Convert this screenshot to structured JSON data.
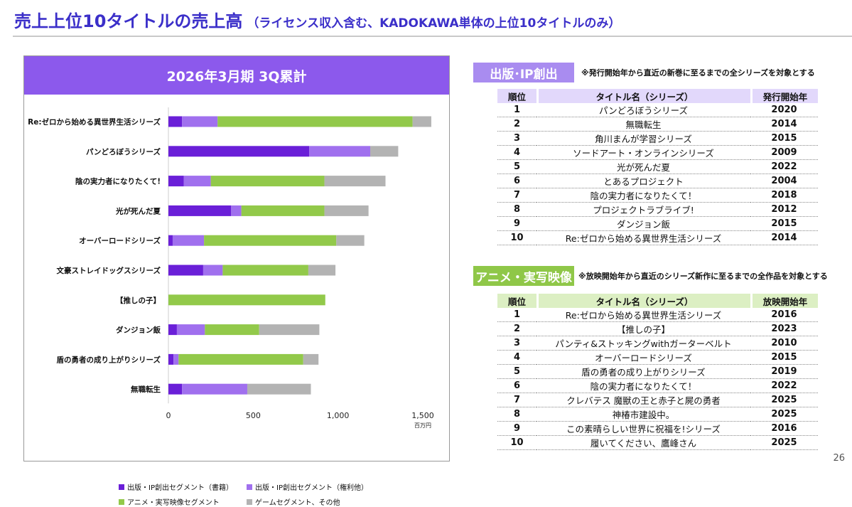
{
  "slide": {
    "title_main": "売上上位10タイトルの売上高",
    "title_sub": "（ライセンス収入含む、KADOKAWA単体の上位10タイトルのみ）",
    "page_number": "26"
  },
  "chart_data": {
    "type": "bar",
    "orientation": "horizontal",
    "stacked": true,
    "title": "2026年3月期 3Q累計",
    "categories": [
      "Re:ゼロから始める異世界生活シリーズ",
      "パンどろぼうシリーズ",
      "陰の実力者になりたくて!",
      "光が死んだ夏",
      "オーバーロードシリーズ",
      "文豪ストレイドッグスシリーズ",
      "【推しの子】",
      "ダンジョン飯",
      "盾の勇者の成り上がりシリーズ",
      "無職転生"
    ],
    "series": [
      {
        "name": "出版・IP創出セグメント（書籍）",
        "color": "#6a1fd8",
        "values": [
          80,
          830,
          90,
          370,
          25,
          205,
          0,
          50,
          30,
          80
        ]
      },
      {
        "name": "出版・IP創出セグメント（権利他）",
        "color": "#a070ee",
        "values": [
          210,
          360,
          160,
          60,
          185,
          115,
          0,
          165,
          30,
          385
        ]
      },
      {
        "name": "アニメ・実写映像セグメント",
        "color": "#92c94a",
        "values": [
          1150,
          0,
          670,
          490,
          780,
          505,
          925,
          320,
          735,
          0
        ]
      },
      {
        "name": "ゲームセグメント、その他",
        "color": "#b3b3b3",
        "values": [
          110,
          165,
          360,
          260,
          165,
          160,
          0,
          355,
          90,
          375
        ]
      }
    ],
    "xlim": [
      0,
      1500
    ],
    "xticks": [
      0,
      500,
      1000,
      1500
    ],
    "xtick_labels": [
      "0",
      "500",
      "1,000",
      "1,500"
    ],
    "x_unit": "百万円",
    "grid": false,
    "legend_position": "bottom"
  },
  "publishing": {
    "tag": "出版･IP創出",
    "note": "※発行開始年から直近の新巻に至るまでの全シリーズを対象とする",
    "headers": [
      "順位",
      "タイトル名（シリーズ）",
      "発行開始年"
    ],
    "rows": [
      {
        "rank": "1",
        "title": "パンどろぼうシリーズ",
        "year": "2020"
      },
      {
        "rank": "2",
        "title": "無職転生",
        "year": "2014"
      },
      {
        "rank": "3",
        "title": "角川まんが学習シリーズ",
        "year": "2015"
      },
      {
        "rank": "4",
        "title": "ソードアート・オンラインシリーズ",
        "year": "2009"
      },
      {
        "rank": "5",
        "title": "光が死んだ夏",
        "year": "2022"
      },
      {
        "rank": "6",
        "title": "とあるプロジェクト",
        "year": "2004"
      },
      {
        "rank": "7",
        "title": "陰の実力者になりたくて！",
        "year": "2018"
      },
      {
        "rank": "8",
        "title": "プロジェクトラブライブ!",
        "year": "2012"
      },
      {
        "rank": "9",
        "title": "ダンジョン飯",
        "year": "2015"
      },
      {
        "rank": "10",
        "title": "Re:ゼロから始める異世界生活シリーズ",
        "year": "2014"
      }
    ],
    "colors": {
      "tag": "#a98cf0",
      "header": "#e2d8fb"
    }
  },
  "anime": {
    "tag": "アニメ・実写映像",
    "note": "※放映開始年から直近のシリーズ新作に至るまでの全作品を対象とする",
    "headers": [
      "順位",
      "タイトル名（シリーズ）",
      "放映開始年"
    ],
    "rows": [
      {
        "rank": "1",
        "title": "Re:ゼロから始める異世界生活シリーズ",
        "year": "2016"
      },
      {
        "rank": "2",
        "title": "【推しの子】",
        "year": "2023"
      },
      {
        "rank": "3",
        "title": "パンティ&ストッキングwithガーターベルト",
        "year": "2010"
      },
      {
        "rank": "4",
        "title": "オーバーロードシリーズ",
        "year": "2015"
      },
      {
        "rank": "5",
        "title": "盾の勇者の成り上がりシリーズ",
        "year": "2019"
      },
      {
        "rank": "6",
        "title": "陰の実力者になりたくて！",
        "year": "2022"
      },
      {
        "rank": "7",
        "title": "クレバテス 魔獣の王と赤子と屍の勇者",
        "year": "2025"
      },
      {
        "rank": "8",
        "title": "神椿市建設中。",
        "year": "2025"
      },
      {
        "rank": "9",
        "title": "この素晴らしい世界に祝福を!シリーズ",
        "year": "2016"
      },
      {
        "rank": "10",
        "title": "履いてください、鷹峰さん",
        "year": "2025"
      }
    ],
    "colors": {
      "tag": "#8fc748",
      "header": "#dcefc3"
    }
  }
}
